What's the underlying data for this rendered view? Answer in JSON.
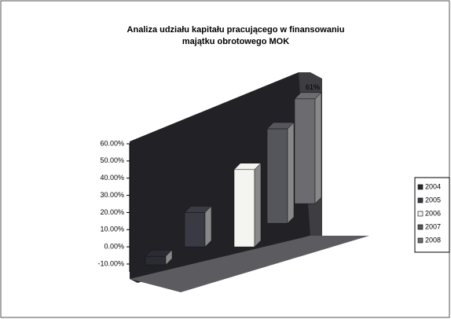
{
  "chart_data": {
    "type": "bar3d",
    "title": "Analiza udziału kapitału pracującego w finansowaniu",
    "subtitle": "majątku obrotowego MOK",
    "ylim": [
      -10,
      60
    ],
    "yticks": [
      {
        "value": 60,
        "label": "60.00%"
      },
      {
        "value": 50,
        "label": "50.00%"
      },
      {
        "value": 40,
        "label": "40.00%"
      },
      {
        "value": 30,
        "label": "30.00%"
      },
      {
        "value": 20,
        "label": "20.00%"
      },
      {
        "value": 10,
        "label": "10.00%"
      },
      {
        "value": 0,
        "label": "0.00%"
      },
      {
        "value": -10,
        "label": "-10.00%"
      }
    ],
    "legend": "right",
    "series": [
      {
        "name": "2004",
        "color": "#2b2b33",
        "values": [
          -5
        ]
      },
      {
        "name": "2005",
        "color": "#3a3a44",
        "values": [
          20
        ]
      },
      {
        "name": "2006",
        "color": "#f4f4f0",
        "values": [
          45
        ]
      },
      {
        "name": "2007",
        "color": "#55555c",
        "values": [
          55
        ]
      },
      {
        "name": "2008",
        "color": "#6c6c70",
        "values": [
          61
        ],
        "value_labels": [
          "61%"
        ]
      }
    ]
  }
}
